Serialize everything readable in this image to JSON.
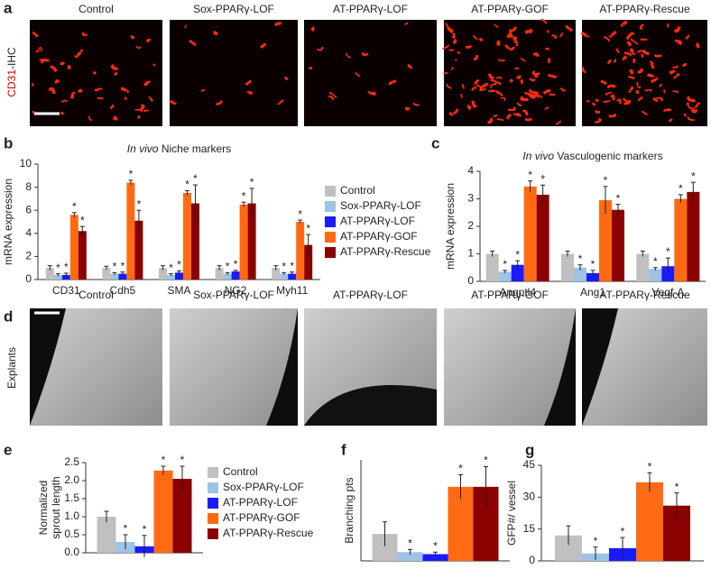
{
  "panel_a": {
    "label": "a",
    "row_label": [
      "CD31",
      "-IHC"
    ],
    "columns": [
      "Control",
      "Sox-PPARγ-LOF",
      "AT-PPARγ-LOF",
      "AT-PPARγ-GOF",
      "AT-PPARγ-Rescue"
    ]
  },
  "panel_d": {
    "label": "d",
    "row_label": "Explants",
    "columns": [
      "Control",
      "Sox-PPARγ-LOF",
      "AT-PPARγ-LOF",
      "AT-PPARγ-GOF",
      "AT-PPARγ-Rescue"
    ]
  },
  "chart_data": [
    {
      "type": "bar",
      "panel": "b",
      "title_prefix": "In vivo",
      "title": "Niche markers",
      "ylabel": [
        "mRNA expression"
      ],
      "categories": [
        "CD31",
        "Cdh5",
        "SMA",
        "NG2",
        "Myh11"
      ],
      "ylim": [
        0,
        10
      ],
      "yticks": [
        0,
        2,
        4,
        6,
        8,
        10
      ],
      "legend": "right",
      "series": [
        {
          "name": "Control",
          "color": "#c0c0c0",
          "values": [
            1,
            1,
            1,
            1,
            1
          ],
          "errors": [
            0.2,
            0.15,
            0.2,
            0.2,
            0.2
          ]
        },
        {
          "name": "Sox-PPARγ-LOF",
          "color": "#9dc3e6",
          "values": [
            0.4,
            0.5,
            0.4,
            0.5,
            0.5
          ],
          "errors": [
            0.1,
            0.1,
            0.1,
            0.1,
            0.1
          ],
          "significance": "*"
        },
        {
          "name": "AT-PPARγ-LOF",
          "color": "#1a1aff",
          "values": [
            0.4,
            0.5,
            0.6,
            0.7,
            0.5
          ],
          "errors": [
            0.15,
            0.15,
            0.15,
            0.1,
            0.15
          ],
          "significance": "*"
        },
        {
          "name": "AT-PPARγ-GOF",
          "color": "#ff6a13",
          "values": [
            5.6,
            8.4,
            7.5,
            6.5,
            5.0
          ],
          "errors": [
            0.2,
            0.2,
            0.2,
            0.2,
            0.15
          ],
          "significance": "*"
        },
        {
          "name": "AT-PPARγ-Rescue",
          "color": "#8b0000",
          "values": [
            4.2,
            5.1,
            6.6,
            6.6,
            3.0
          ],
          "errors": [
            0.4,
            0.9,
            1.6,
            1.3,
            0.9
          ],
          "significance": "*"
        }
      ]
    },
    {
      "type": "bar",
      "panel": "c",
      "title_prefix": "In vivo",
      "title": "Vasculogenic markers",
      "ylabel": [
        "mRNA expression"
      ],
      "categories": [
        "Angptl4",
        "Ang1",
        "Vegf-A"
      ],
      "ylim": [
        0,
        4
      ],
      "yticks": [
        0,
        1,
        2,
        3,
        4
      ],
      "series": [
        {
          "name": "Control",
          "color": "#c0c0c0",
          "values": [
            1,
            1,
            1
          ],
          "errors": [
            0.1,
            0.1,
            0.1
          ]
        },
        {
          "name": "Sox-PPARγ-LOF",
          "color": "#9dc3e6",
          "values": [
            0.35,
            0.5,
            0.45
          ],
          "errors": [
            0.05,
            0.1,
            0.05
          ],
          "significance": "*"
        },
        {
          "name": "AT-PPARγ-LOF",
          "color": "#1a1aff",
          "values": [
            0.6,
            0.3,
            0.55
          ],
          "errors": [
            0.15,
            0.1,
            0.3
          ],
          "significance": "*"
        },
        {
          "name": "AT-PPARγ-GOF",
          "color": "#ff6a13",
          "values": [
            3.45,
            2.95,
            3.0
          ],
          "errors": [
            0.2,
            0.5,
            0.15
          ],
          "significance": "*"
        },
        {
          "name": "AT-PPARγ-Rescue",
          "color": "#8b0000",
          "values": [
            3.15,
            2.6,
            3.25
          ],
          "errors": [
            0.35,
            0.2,
            0.35
          ],
          "significance": "*"
        }
      ]
    },
    {
      "type": "bar",
      "panel": "e",
      "ylabel": [
        "Normalized",
        "sprout length"
      ],
      "categories": [
        null
      ],
      "ylim": [
        0,
        2.5
      ],
      "yticks": [
        {
          "value": 0,
          "label": "0.0"
        },
        0.5,
        {
          "value": 1,
          "label": "1.0"
        },
        1.5,
        {
          "value": 2,
          "label": "2.0"
        },
        2.5
      ],
      "legend": "right",
      "series": [
        {
          "name": "Control",
          "color": "#c0c0c0",
          "values": [
            1.0
          ],
          "errors": [
            0.15
          ]
        },
        {
          "name": "Sox-PPARγ-LOF",
          "color": "#9dc3e6",
          "values": [
            0.3
          ],
          "errors": [
            0.2
          ],
          "significance": "*"
        },
        {
          "name": "AT-PPARγ-LOF",
          "color": "#1a1aff",
          "values": [
            0.18
          ],
          "errors": [
            0.3
          ],
          "significance": "*"
        },
        {
          "name": "AT-PPARγ-GOF",
          "color": "#ff6a13",
          "values": [
            2.28
          ],
          "errors": [
            0.12
          ],
          "significance": "*"
        },
        {
          "name": "AT-PPARγ-Rescue",
          "color": "#8b0000",
          "values": [
            2.05
          ],
          "errors": [
            0.35
          ],
          "significance": "*"
        }
      ]
    },
    {
      "type": "bar",
      "panel": "f",
      "ylabel": [
        "Branching pts"
      ],
      "categories": [
        null
      ],
      "ylim": [
        0,
        15
      ],
      "series": [
        {
          "name": "Control",
          "color": "#c0c0c0",
          "values": [
            4
          ],
          "errors": [
            1.8
          ]
        },
        {
          "name": "Sox-PPARγ-LOF",
          "color": "#9dc3e6",
          "values": [
            1.3
          ],
          "errors": [
            0.4
          ],
          "significance": "*"
        },
        {
          "name": "AT-PPARγ-LOF",
          "color": "#1a1aff",
          "values": [
            1.0
          ],
          "errors": [
            0.3
          ],
          "significance": "*"
        },
        {
          "name": "AT-PPARγ-GOF",
          "color": "#ff6a13",
          "values": [
            11
          ],
          "errors": [
            1.8
          ],
          "significance": "*"
        },
        {
          "name": "AT-PPARγ-Rescue",
          "color": "#8b0000",
          "values": [
            11
          ],
          "errors": [
            3
          ],
          "significance": "*"
        }
      ]
    },
    {
      "type": "bar",
      "panel": "g",
      "ylabel": [
        "GFP#/ vessel"
      ],
      "categories": [
        null
      ],
      "ylim": [
        0,
        45
      ],
      "yticks": [
        0,
        15,
        30,
        45
      ],
      "series": [
        {
          "name": "Control",
          "color": "#c0c0c0",
          "values": [
            12
          ],
          "errors": [
            4.5
          ]
        },
        {
          "name": "Sox-PPARγ-LOF",
          "color": "#9dc3e6",
          "values": [
            3.5
          ],
          "errors": [
            3
          ],
          "significance": "*"
        },
        {
          "name": "AT-PPARγ-LOF",
          "color": "#1a1aff",
          "values": [
            6
          ],
          "errors": [
            5
          ],
          "significance": "*"
        },
        {
          "name": "AT-PPARγ-GOF",
          "color": "#ff6a13",
          "values": [
            37
          ],
          "errors": [
            4.5
          ],
          "significance": "*"
        },
        {
          "name": "AT-PPARγ-Rescue",
          "color": "#8b0000",
          "values": [
            26
          ],
          "errors": [
            6
          ],
          "significance": "*"
        }
      ]
    }
  ]
}
